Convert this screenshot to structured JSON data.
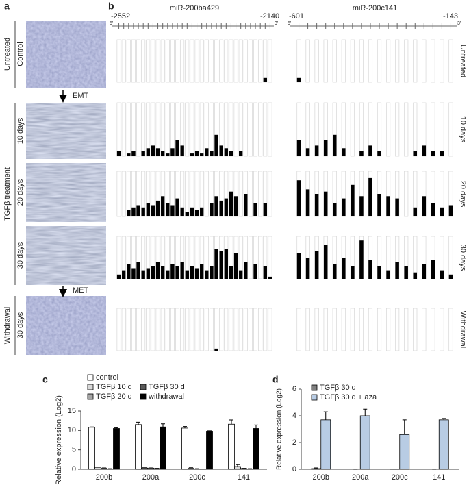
{
  "panel_labels": [
    "a",
    "b",
    "c",
    "d"
  ],
  "panel_a": {
    "group_labels": [
      "Untreated",
      "TGFβ treatment",
      "Withdrawal"
    ],
    "image_labels": [
      "Control",
      "10 days",
      "20 days",
      "30 days",
      "30 days"
    ],
    "arrows": [
      "EMT",
      "MET"
    ]
  },
  "chart_data": [
    {
      "type": "methylation",
      "conditions": [
        "Untreated",
        "10 days",
        "20 days",
        "30 days",
        "Withdrawal"
      ],
      "regions": [
        {
          "name": "miR-200ba429",
          "start": -2552,
          "end": -2140,
          "five_prime": "5'",
          "three_prime": "3'",
          "values": [
            [
              0,
              0,
              0,
              0,
              0,
              0,
              0,
              0,
              0,
              0,
              0,
              0,
              0,
              0,
              0,
              0,
              0,
              0,
              0,
              0,
              0,
              0,
              0,
              0,
              0,
              0,
              0,
              0,
              0,
              0,
              0.1,
              0
            ],
            [
              0.1,
              0,
              0.05,
              0.1,
              0,
              0.1,
              0.15,
              0.2,
              0.15,
              0.1,
              0.05,
              0.15,
              0.3,
              0.2,
              0,
              0.05,
              0.1,
              0.05,
              0.15,
              0.1,
              0.4,
              0.2,
              0.15,
              0.1,
              0,
              0.1,
              0,
              0,
              0,
              0,
              0,
              0
            ],
            [
              0,
              0,
              0.15,
              0.2,
              0.25,
              0.2,
              0.3,
              0.25,
              0.35,
              0.45,
              0.3,
              0.25,
              0.4,
              0.2,
              0.1,
              0.2,
              0.15,
              0.2,
              0,
              0.3,
              0.45,
              0.35,
              0.4,
              0.55,
              0.45,
              0,
              0.5,
              0,
              0.3,
              0,
              0.3,
              0
            ],
            [
              0.1,
              0.2,
              0.35,
              0.25,
              0.4,
              0.2,
              0.25,
              0.3,
              0.4,
              0.3,
              0.2,
              0.35,
              0.3,
              0.4,
              0.2,
              0.3,
              0.25,
              0.35,
              0.2,
              0.3,
              0.7,
              0.65,
              0.7,
              0.3,
              0.6,
              0.2,
              0.4,
              0,
              0.35,
              0,
              0.3,
              0.05
            ],
            [
              0,
              0,
              0,
              0,
              0,
              0,
              0,
              0,
              0,
              0,
              0,
              0,
              0,
              0,
              0,
              0,
              0,
              0,
              0,
              0,
              0.05,
              0,
              0,
              0,
              0,
              0,
              0,
              0,
              0,
              0,
              0,
              0
            ]
          ]
        },
        {
          "name": "miR-200c141",
          "start": -601,
          "end": -143,
          "five_prime": "5'",
          "three_prime": "3'",
          "values": [
            [
              0.1,
              0,
              0,
              0,
              0,
              0,
              0,
              0,
              0,
              0,
              0,
              0,
              0,
              0,
              0,
              0,
              0,
              0
            ],
            [
              0.3,
              0.15,
              0.2,
              0.3,
              0.4,
              0.15,
              0,
              0.1,
              0.2,
              0.1,
              0,
              0,
              0,
              0.1,
              0.2,
              0.1,
              0.1,
              0
            ],
            [
              0.8,
              0.6,
              0.5,
              0.55,
              0.3,
              0.4,
              0.7,
              0.45,
              0.85,
              0.5,
              0.45,
              0.4,
              0,
              0.2,
              0.45,
              0.3,
              0.2,
              0.25
            ],
            [
              0.6,
              0.5,
              0.65,
              0.8,
              0.35,
              0.5,
              0.3,
              0.9,
              0.45,
              0.3,
              0.2,
              0.4,
              0.3,
              0.15,
              0.35,
              0.45,
              0.2,
              0.1
            ],
            [
              0,
              0,
              0,
              0,
              0,
              0,
              0,
              0,
              0,
              0,
              0,
              0,
              0,
              0,
              0,
              0,
              0,
              0
            ]
          ]
        }
      ]
    },
    {
      "type": "bar",
      "ylabel": "Relative expression (Log2)",
      "categories": [
        "200b",
        "200a",
        "200c",
        "141"
      ],
      "ylim": [
        0,
        15
      ],
      "yticks": [
        0,
        5,
        10,
        15
      ],
      "series": [
        {
          "name": "control",
          "color": "#ffffff",
          "values": [
            10.8,
            11.5,
            10.6,
            11.6
          ],
          "errors": [
            0.1,
            0.6,
            0.4,
            1.1
          ]
        },
        {
          "name": "TGFβ 10 d",
          "color": "#d9d9d9",
          "values": [
            0.5,
            0.3,
            0.3,
            0.7
          ],
          "errors": [
            0.1,
            0.1,
            0.1,
            0.5
          ]
        },
        {
          "name": "TGFβ 20 d",
          "color": "#a6a6a6",
          "values": [
            0.3,
            0.3,
            0.1,
            0.2
          ],
          "errors": [
            0.05,
            0.05,
            0.05,
            0.05
          ]
        },
        {
          "name": "TGFβ 30 d",
          "color": "#595959",
          "values": [
            0.1,
            0.2,
            0.05,
            0.1
          ],
          "errors": [
            0.05,
            0.05,
            0.02,
            0.05
          ]
        },
        {
          "name": "withdrawal",
          "color": "#000000",
          "values": [
            10.5,
            10.9,
            9.8,
            10.5
          ],
          "errors": [
            0.2,
            0.8,
            0.1,
            0.9
          ]
        }
      ]
    },
    {
      "type": "bar",
      "ylabel": "Relative expression (Log2)",
      "categories": [
        "200b",
        "200a",
        "200c",
        "141"
      ],
      "ylim": [
        0,
        6
      ],
      "yticks": [
        0,
        2,
        4,
        6
      ],
      "series": [
        {
          "name": "TGFβ 30 d",
          "color": "#808080",
          "values": [
            0.05,
            0,
            0.02,
            0
          ],
          "errors": [
            0.05,
            0,
            0,
            0
          ]
        },
        {
          "name": "TGFβ 30 d + aza",
          "color": "#b8cce4",
          "values": [
            3.7,
            4.0,
            2.6,
            3.7
          ],
          "errors": [
            0.6,
            0.5,
            1.1,
            0.1
          ]
        }
      ]
    }
  ]
}
